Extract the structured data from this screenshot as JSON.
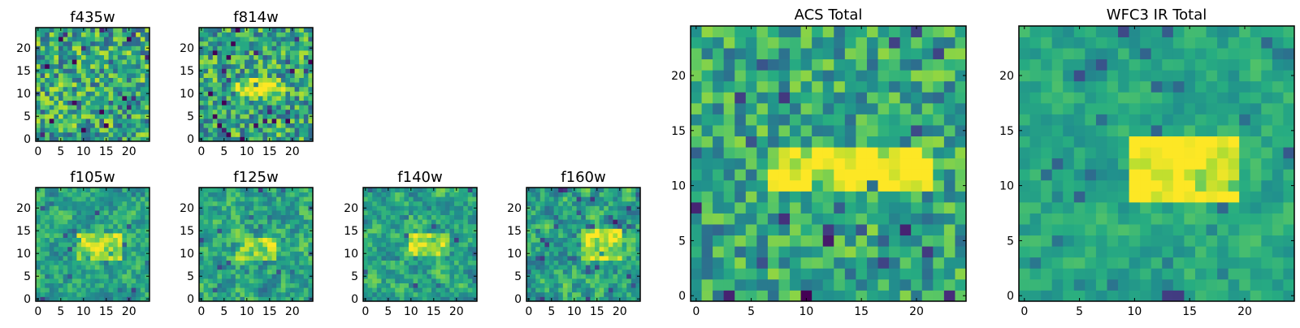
{
  "colormap": "viridis",
  "colors": {
    "frame": "#000000",
    "background": "#ffffff"
  },
  "chart_data": [
    {
      "type": "heatmap",
      "title": "f435w",
      "grid": [
        25,
        25
      ],
      "xticks": [
        0,
        5,
        10,
        15,
        20
      ],
      "yticks": [
        0,
        5,
        10,
        15,
        20
      ],
      "xlim": [
        -0.5,
        24.5
      ],
      "ylim": [
        -0.5,
        24.5
      ],
      "feature": {
        "x_range": [
          0,
          24
        ],
        "y_range": [
          0,
          24
        ],
        "strength": 0.0
      },
      "seed": 11,
      "noise": 0.32,
      "smooth": 0
    },
    {
      "type": "heatmap",
      "title": "f814w",
      "grid": [
        25,
        25
      ],
      "xticks": [
        0,
        5,
        10,
        15,
        20
      ],
      "yticks": [
        0,
        5,
        10,
        15,
        20
      ],
      "xlim": [
        -0.5,
        24.5
      ],
      "ylim": [
        -0.5,
        24.5
      ],
      "feature": {
        "x_range": [
          8,
          18
        ],
        "y_range": [
          10,
          13
        ],
        "strength": 0.35
      },
      "seed": 23,
      "noise": 0.3,
      "smooth": 0
    },
    {
      "type": "heatmap",
      "title": "f105w",
      "grid": [
        25,
        25
      ],
      "xticks": [
        0,
        5,
        10,
        15,
        20
      ],
      "yticks": [
        0,
        5,
        10,
        15,
        20
      ],
      "xlim": [
        -0.5,
        24.5
      ],
      "ylim": [
        -0.5,
        24.5
      ],
      "feature": {
        "x_range": [
          9,
          18
        ],
        "y_range": [
          9,
          14
        ],
        "strength": 0.3
      },
      "seed": 37,
      "noise": 0.28,
      "smooth": 1
    },
    {
      "type": "heatmap",
      "title": "f125w",
      "grid": [
        25,
        25
      ],
      "xticks": [
        0,
        5,
        10,
        15,
        20
      ],
      "yticks": [
        0,
        5,
        10,
        15,
        20
      ],
      "xlim": [
        -0.5,
        24.5
      ],
      "ylim": [
        -0.5,
        24.5
      ],
      "feature": {
        "x_range": [
          8,
          16
        ],
        "y_range": [
          9,
          13
        ],
        "strength": 0.2
      },
      "seed": 41,
      "noise": 0.32,
      "smooth": 1
    },
    {
      "type": "heatmap",
      "title": "f140w",
      "grid": [
        25,
        25
      ],
      "xticks": [
        0,
        5,
        10,
        15,
        20
      ],
      "yticks": [
        0,
        5,
        10,
        15,
        20
      ],
      "xlim": [
        -0.5,
        24.5
      ],
      "ylim": [
        -0.5,
        24.5
      ],
      "feature": {
        "x_range": [
          10,
          18
        ],
        "y_range": [
          10,
          14
        ],
        "strength": 0.3
      },
      "seed": 53,
      "noise": 0.3,
      "smooth": 1
    },
    {
      "type": "heatmap",
      "title": "f160w",
      "grid": [
        25,
        25
      ],
      "xticks": [
        0,
        5,
        10,
        15,
        20
      ],
      "yticks": [
        0,
        5,
        10,
        15,
        20
      ],
      "xlim": [
        -0.5,
        24.5
      ],
      "ylim": [
        -0.5,
        24.5
      ],
      "feature": {
        "x_range": [
          12,
          20
        ],
        "y_range": [
          9,
          15
        ],
        "strength": 0.3
      },
      "seed": 67,
      "noise": 0.32,
      "smooth": 1
    },
    {
      "type": "heatmap",
      "title": "ACS Total",
      "grid": [
        25,
        25
      ],
      "xticks": [
        0,
        5,
        10,
        15,
        20
      ],
      "yticks": [
        0,
        5,
        10,
        15,
        20
      ],
      "xlim": [
        -0.5,
        24.5
      ],
      "ylim": [
        -0.5,
        24.5
      ],
      "feature": {
        "x_range": [
          7,
          21
        ],
        "y_range": [
          10,
          13
        ],
        "strength": 0.4
      },
      "seed": 79,
      "noise": 0.24,
      "smooth": 0
    },
    {
      "type": "heatmap",
      "title": "WFC3 IR Total",
      "grid": [
        25,
        25
      ],
      "xticks": [
        0,
        5,
        10,
        15,
        20
      ],
      "yticks": [
        0,
        5,
        10,
        15,
        20
      ],
      "xlim": [
        -0.5,
        24.5
      ],
      "ylim": [
        -0.5,
        24.5
      ],
      "feature": {
        "x_range": [
          10,
          19
        ],
        "y_range": [
          9,
          14
        ],
        "strength": 0.4
      },
      "seed": 97,
      "noise": 0.18,
      "smooth": 1
    }
  ]
}
